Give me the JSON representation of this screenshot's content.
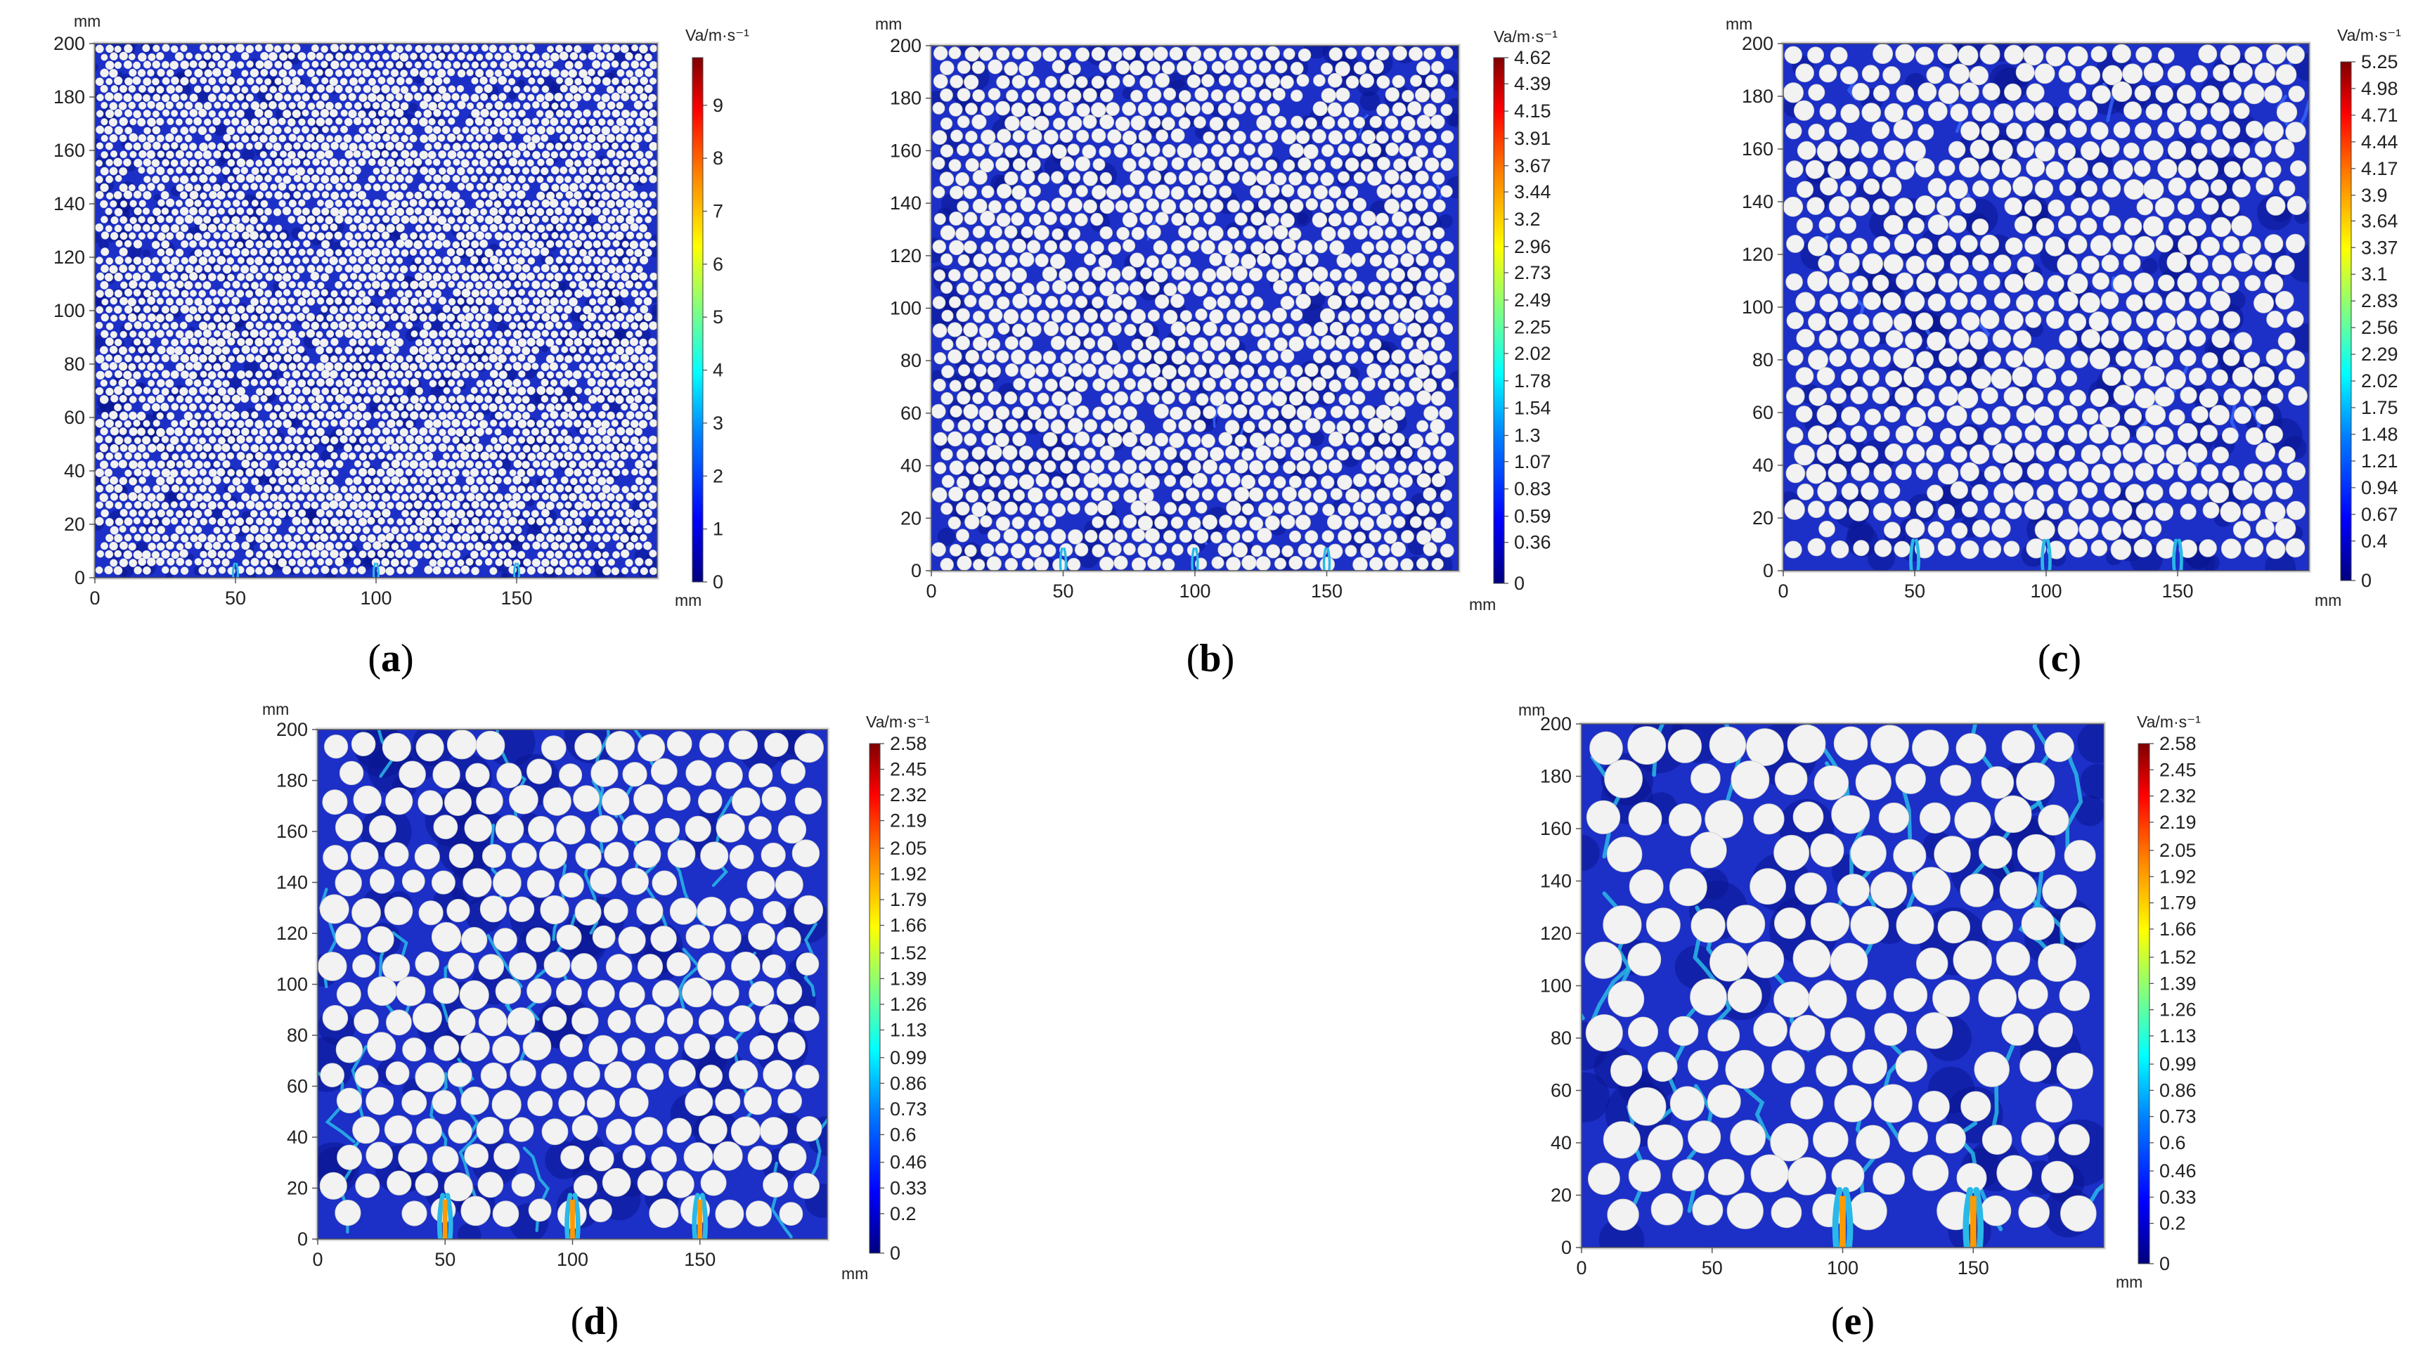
{
  "chart_data": [
    {
      "type": "heatmap",
      "panel_label": "a",
      "axis_unit": "mm",
      "xticks": [
        0,
        50,
        100,
        150
      ],
      "yticks": [
        0,
        20,
        40,
        60,
        80,
        100,
        120,
        140,
        160,
        180,
        200
      ],
      "xlim": [
        0,
        200
      ],
      "ylim": [
        0,
        200
      ],
      "colorbar_title": "Va/m·s⁻¹",
      "colorbar_range": [
        0,
        9.9
      ],
      "colorbar_ticks": [
        "9",
        "8",
        "7",
        "6",
        "5",
        "4",
        "3",
        "2",
        "1",
        "0"
      ],
      "particle_density": "very dense small",
      "jet_x": [
        50,
        100,
        150
      ]
    },
    {
      "type": "heatmap",
      "panel_label": "b",
      "axis_unit": "mm",
      "xticks": [
        0,
        50,
        100,
        150
      ],
      "yticks": [
        0,
        20,
        40,
        60,
        80,
        100,
        120,
        140,
        160,
        180,
        200
      ],
      "xlim": [
        0,
        200
      ],
      "ylim": [
        0,
        200
      ],
      "colorbar_title": "Va/m·s⁻¹",
      "colorbar_range": [
        0,
        4.62
      ],
      "colorbar_ticks": [
        "4.62",
        "4.39",
        "4.15",
        "3.91",
        "3.67",
        "3.44",
        "3.2",
        "2.96",
        "2.73",
        "2.49",
        "2.25",
        "2.02",
        "1.78",
        "1.54",
        "1.3",
        "1.07",
        "0.83",
        "0.59",
        "0.36",
        "0"
      ],
      "particle_density": "dense",
      "jet_x": [
        50,
        100,
        150
      ]
    },
    {
      "type": "heatmap",
      "panel_label": "c",
      "axis_unit": "mm",
      "xticks": [
        0,
        50,
        100,
        150
      ],
      "yticks": [
        0,
        20,
        40,
        60,
        80,
        100,
        120,
        140,
        160,
        180,
        200
      ],
      "xlim": [
        0,
        200
      ],
      "ylim": [
        0,
        200
      ],
      "colorbar_title": "Va/m·s⁻¹",
      "colorbar_range": [
        0,
        5.25
      ],
      "colorbar_ticks": [
        "5.25",
        "4.98",
        "4.71",
        "4.44",
        "4.17",
        "3.9",
        "3.64",
        "3.37",
        "3.1",
        "2.83",
        "2.56",
        "2.29",
        "2.02",
        "1.75",
        "1.48",
        "1.21",
        "0.94",
        "0.67",
        "0.4",
        "0"
      ],
      "particle_density": "medium",
      "jet_x": [
        50,
        100,
        150
      ]
    },
    {
      "type": "heatmap",
      "panel_label": "d",
      "axis_unit": "mm",
      "xticks": [
        0,
        50,
        100,
        150
      ],
      "yticks": [
        0,
        20,
        40,
        60,
        80,
        100,
        120,
        140,
        160,
        180,
        200
      ],
      "xlim": [
        0,
        200
      ],
      "ylim": [
        0,
        200
      ],
      "colorbar_title": "Va/m·s⁻¹",
      "colorbar_range": [
        0,
        2.58
      ],
      "colorbar_ticks": [
        "2.58",
        "2.45",
        "2.32",
        "2.19",
        "2.05",
        "1.92",
        "1.79",
        "1.66",
        "1.52",
        "1.39",
        "1.26",
        "1.13",
        "0.99",
        "0.86",
        "0.73",
        "0.6",
        "0.46",
        "0.33",
        "0.2",
        "0"
      ],
      "particle_density": "coarse",
      "jet_x": [
        50,
        100,
        150
      ]
    },
    {
      "type": "heatmap",
      "panel_label": "e",
      "axis_unit": "mm",
      "xticks": [
        0,
        50,
        100,
        150
      ],
      "yticks": [
        0,
        20,
        40,
        60,
        80,
        100,
        120,
        140,
        160,
        180,
        200
      ],
      "xlim": [
        0,
        200
      ],
      "ylim": [
        0,
        200
      ],
      "colorbar_title": "Va/m·s⁻¹",
      "colorbar_range": [
        0,
        2.58
      ],
      "colorbar_ticks": [
        "2.58",
        "2.45",
        "2.32",
        "2.19",
        "2.05",
        "1.92",
        "1.79",
        "1.66",
        "1.52",
        "1.39",
        "1.26",
        "1.13",
        "0.99",
        "0.86",
        "0.73",
        "0.6",
        "0.46",
        "0.33",
        "0.2",
        "0"
      ],
      "particle_density": "very coarse",
      "jet_x": [
        100,
        150
      ]
    }
  ],
  "colors": {
    "fluid_background": "#1c2fc7",
    "fluid_dark": "#0a1590",
    "particle": "#f2f2f2",
    "channel": "#2ab8e8",
    "jet_hot": "#ff9a00",
    "colormap": [
      "#00007f",
      "#0000ff",
      "#0080ff",
      "#00ffff",
      "#80ff80",
      "#ffff00",
      "#ff8000",
      "#ff0000",
      "#7f0000"
    ]
  }
}
